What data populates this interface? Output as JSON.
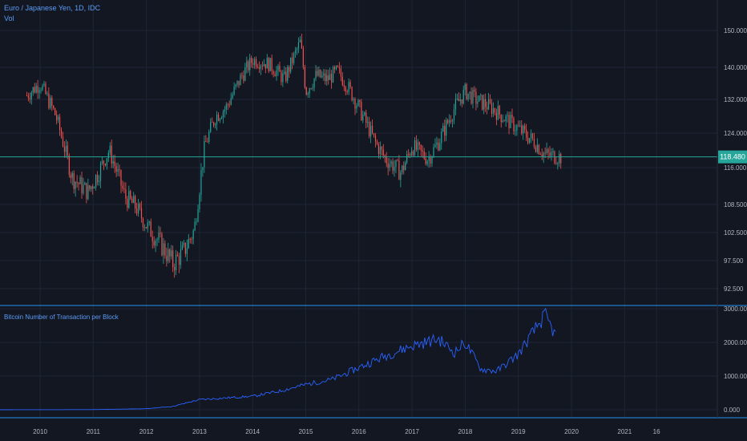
{
  "header": {
    "symbol": "Euro / Japanese Yen, 1D, IDC",
    "vol": "Vol",
    "indicator": "Bitcoin Number of Transaction per Block"
  },
  "colors": {
    "background": "#131722",
    "grid": "#1e2536",
    "up": "#26a69a",
    "down": "#ef5350",
    "indicator_line": "#2962ff",
    "price_line": "#26a69a",
    "separator": "#2196f3"
  },
  "chart_data": [
    {
      "type": "candlestick",
      "title": "Euro / Japanese Yen, 1D, IDC",
      "x_ticks": [
        "2010",
        "2011",
        "2012",
        "2013",
        "2014",
        "2015",
        "2016",
        "2017",
        "2018",
        "2019",
        "2020",
        "2021",
        "16"
      ],
      "y_ticks": [
        "150.000",
        "140.000",
        "132.000",
        "124.000",
        "116.000",
        "108.500",
        "102.500",
        "97.500",
        "92.500"
      ],
      "last_price": "118.480",
      "series": [
        {
          "name": "EUR/JPY",
          "x": [
            2009.75,
            2010.0,
            2010.3,
            2010.6,
            2010.9,
            2011.1,
            2011.3,
            2011.6,
            2011.8,
            2012.0,
            2012.3,
            2012.5,
            2012.7,
            2012.9,
            2013.1,
            2013.3,
            2013.5,
            2013.8,
            2014.0,
            2014.3,
            2014.6,
            2014.9,
            2015.0,
            2015.2,
            2015.4,
            2015.6,
            2015.8,
            2016.0,
            2016.3,
            2016.5,
            2016.8,
            2017.0,
            2017.3,
            2017.5,
            2017.8,
            2018.0,
            2018.2,
            2018.5,
            2018.8,
            2019.0,
            2019.3,
            2019.5,
            2019.8
          ],
          "values": [
            133,
            136,
            128,
            114,
            111,
            115,
            120,
            110,
            108,
            104,
            100,
            97,
            99,
            103,
            121,
            128,
            130,
            138,
            142,
            141,
            137,
            147,
            134,
            138,
            137,
            139,
            135,
            130,
            122,
            118,
            115,
            121,
            118,
            122,
            130,
            134,
            132,
            130,
            127,
            125,
            122,
            119,
            118.48
          ]
        }
      ]
    },
    {
      "type": "line",
      "title": "Bitcoin Number of Transaction per Block",
      "y_ticks": [
        "3000.000",
        "2000.000",
        "1000.000",
        "0.000"
      ],
      "series": [
        {
          "name": "Bitcoin Number of Transaction per Block",
          "x": [
            2009.0,
            2011.0,
            2012.0,
            2012.5,
            2013.0,
            2014.0,
            2014.5,
            2015.0,
            2015.5,
            2016.0,
            2016.5,
            2017.0,
            2017.5,
            2017.8,
            2018.0,
            2018.3,
            2018.6,
            2019.0,
            2019.3,
            2019.5,
            2019.7
          ],
          "values": [
            0,
            5,
            30,
            100,
            300,
            400,
            550,
            750,
            900,
            1250,
            1600,
            1900,
            2100,
            1700,
            2000,
            1200,
            1150,
            1650,
            2350,
            2800,
            2200
          ]
        }
      ]
    }
  ]
}
